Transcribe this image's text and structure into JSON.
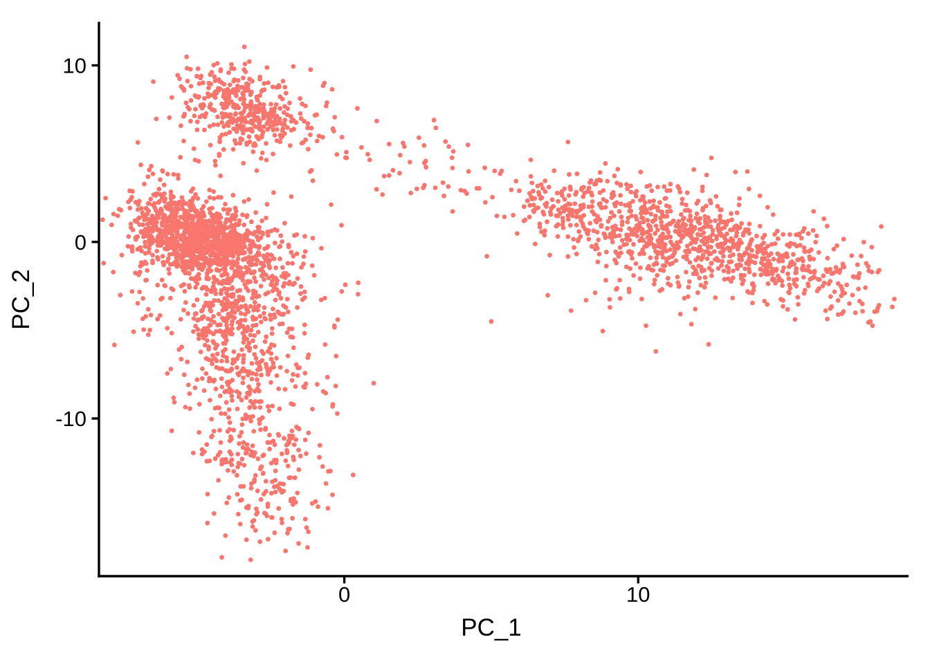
{
  "chart_data": {
    "type": "scatter",
    "title": "",
    "xlabel": "PC_1",
    "ylabel": "PC_2",
    "xlim": [
      -8.35,
      19.2
    ],
    "ylim": [
      -18.93,
      12.41
    ],
    "x_ticks": [
      {
        "value": 0,
        "label": "0"
      },
      {
        "value": 10,
        "label": "10"
      }
    ],
    "y_ticks": [
      {
        "value": 10,
        "label": "10"
      },
      {
        "value": 0,
        "label": "0"
      },
      {
        "value": -10,
        "label": "-10"
      }
    ],
    "grid": false,
    "legend": "none",
    "point_color": "#F8766D",
    "point_radius_px": 3.4,
    "axis_color": "#000000",
    "background_color": "#FFFFFF",
    "seed": 7,
    "series": [
      {
        "name": "cells",
        "clusters": [
          {
            "name": "upper-left-cluster",
            "n": 340,
            "cx": -3.35,
            "cy": 7.6,
            "sx": 1.0,
            "sy": 1.15,
            "rho": -0.3
          },
          {
            "name": "upper-left-halo",
            "n": 80,
            "cx": -3.0,
            "cy": 7.2,
            "sx": 1.9,
            "sy": 1.7,
            "rho": -0.35
          },
          {
            "name": "left-main-core",
            "n": 700,
            "cx": -4.9,
            "cy": 0.35,
            "sx": 1.05,
            "sy": 1.05,
            "rho": -0.45
          },
          {
            "name": "left-main-body",
            "n": 450,
            "cx": -4.6,
            "cy": -0.4,
            "sx": 1.5,
            "sy": 1.8,
            "rho": -0.5
          },
          {
            "name": "left-halo",
            "n": 150,
            "cx": -4.3,
            "cy": -0.8,
            "sx": 2.1,
            "sy": 2.6,
            "rho": -0.35
          },
          {
            "name": "tail-upper",
            "n": 260,
            "cx": -3.75,
            "cy": -4.6,
            "sx": 1.0,
            "sy": 1.5,
            "rho": 0.1
          },
          {
            "name": "tail-mid",
            "n": 150,
            "cx": -3.3,
            "cy": -8.2,
            "sx": 1.0,
            "sy": 1.4,
            "rho": 0.1
          },
          {
            "name": "tail-lower",
            "n": 150,
            "cx": -2.95,
            "cy": -12.2,
            "sx": 1.05,
            "sy": 1.35,
            "rho": 0.0
          },
          {
            "name": "tail-bottom",
            "n": 50,
            "cx": -2.7,
            "cy": -15.4,
            "sx": 0.8,
            "sy": 1.0,
            "rho": 0.0
          },
          {
            "name": "mid-sparse-band",
            "n": 40,
            "cx": 2.6,
            "cy": 4.2,
            "sx": 1.7,
            "sy": 1.0,
            "rho": -0.25
          },
          {
            "name": "right-approach",
            "n": 120,
            "cx": 7.8,
            "cy": 2.0,
            "sx": 1.4,
            "sy": 1.1,
            "rho": -0.35
          },
          {
            "name": "right-main",
            "n": 780,
            "cx": 11.9,
            "cy": 0.1,
            "sx": 2.4,
            "sy": 1.55,
            "rho": -0.5
          },
          {
            "name": "right-far",
            "n": 100,
            "cx": 16.2,
            "cy": -2.0,
            "sx": 1.15,
            "sy": 1.25,
            "rho": -0.45
          },
          {
            "name": "right-lower-sparse",
            "n": 25,
            "cx": 9.0,
            "cy": -3.0,
            "sx": 1.6,
            "sy": 1.3,
            "rho": 0.0
          },
          {
            "name": "left-edge-outliers",
            "n": 12,
            "cx": -7.05,
            "cy": -0.8,
            "sx": 0.3,
            "sy": 2.2,
            "rho": 0.0
          },
          {
            "name": "mid-vertical-strip",
            "n": 14,
            "cx": -0.35,
            "cy": -6.5,
            "sx": 0.45,
            "sy": 3.4,
            "rho": 0.0
          }
        ],
        "outlier_points": [
          [
            -3.4,
            11.05
          ],
          [
            3.05,
            6.9
          ],
          [
            -2.0,
            -17.5
          ],
          [
            -1.25,
            -17.3
          ],
          [
            2.0,
            5.6
          ],
          [
            0.3,
            -13.2
          ],
          [
            17.95,
            -0.3
          ],
          [
            18.2,
            -1.6
          ],
          [
            17.9,
            -4.5
          ],
          [
            -7.3,
            2.9
          ],
          [
            5.0,
            -4.5
          ],
          [
            1.0,
            -8.0
          ],
          [
            10.6,
            -6.2
          ],
          [
            12.4,
            -5.8
          ]
        ]
      }
    ]
  },
  "colors": {
    "points": "#F8766D",
    "axis": "#000000",
    "background": "#FFFFFF"
  }
}
